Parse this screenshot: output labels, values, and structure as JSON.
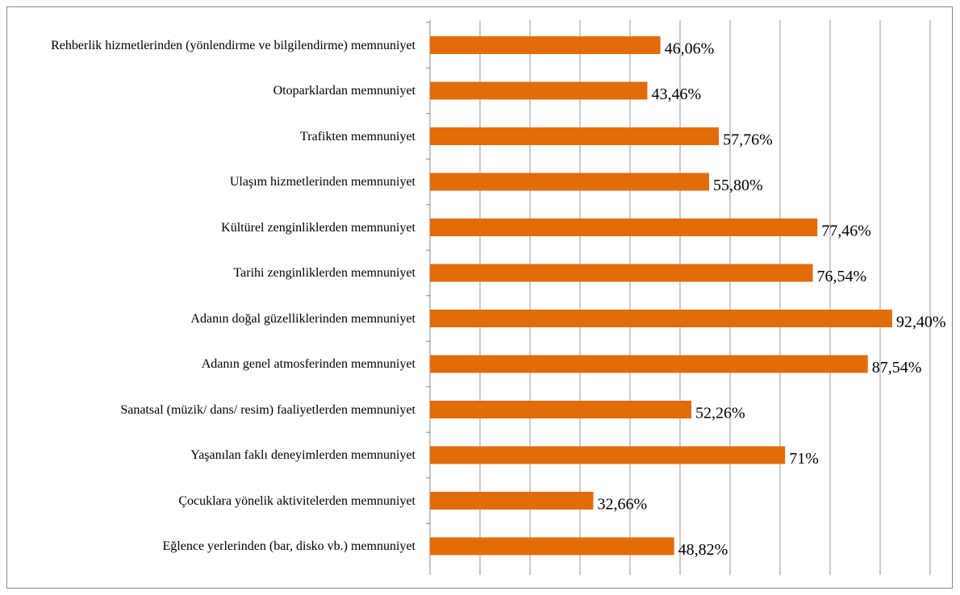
{
  "chart_data": {
    "type": "bar",
    "orientation": "horizontal",
    "categories": [
      "Rehberlik hizmetlerinden (yönlendirme ve bilgilendirme) memnuniyet",
      "Otoparklardan memnuniyet",
      "Trafikten memnuniyet",
      "Ulaşım hizmetlerinden memnuniyet",
      "Kültürel zenginliklerden memnuniyet",
      "Tarihi zenginliklerden memnuniyet",
      "Adanın doğal güzelliklerinden memnuniyet",
      "Adanın genel atmosferinden memnuniyet",
      "Sanatsal (müzik/ dans/ resim) faaliyetlerden memnuniyet",
      "Yaşanılan faklı deneyimlerden memnuniyet",
      "Çocuklara yönelik aktivitelerden memnuniyet",
      "Eğlence yerlerinden (bar, disko vb.) memnuniyet"
    ],
    "values": [
      46.06,
      43.46,
      57.76,
      55.8,
      77.46,
      76.54,
      92.4,
      87.54,
      52.26,
      71,
      32.66,
      48.82
    ],
    "value_labels": [
      "46,06%",
      "43,46%",
      "57,76%",
      "55,80%",
      "77,46%",
      "76,54%",
      "92,40%",
      "87,54%",
      "52,26%",
      "71%",
      "32,66%",
      "48,82%"
    ],
    "color": "#e36c0a",
    "xlim": [
      0,
      100
    ],
    "xticks": [
      0,
      10,
      20,
      30,
      40,
      50,
      60,
      70,
      80,
      90,
      100
    ],
    "grid": true
  }
}
